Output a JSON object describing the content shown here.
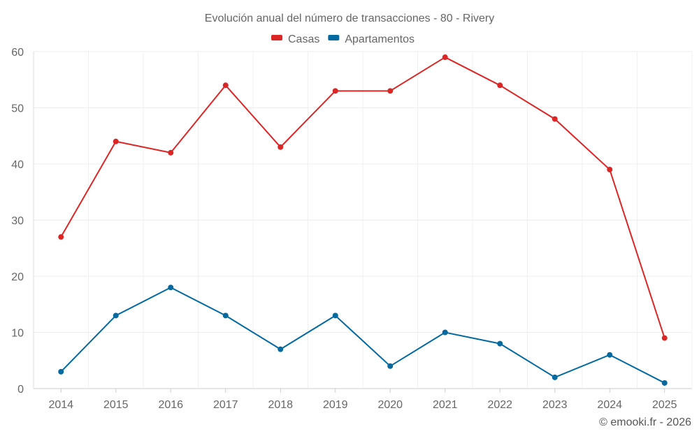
{
  "chart_data": {
    "type": "line",
    "title": "Evolución anual del número de transacciones - 80 - Rivery",
    "categories": [
      "2014",
      "2015",
      "2016",
      "2017",
      "2018",
      "2019",
      "2020",
      "2021",
      "2022",
      "2023",
      "2024",
      "2025"
    ],
    "series": [
      {
        "name": "Casas",
        "color": "#dc2626",
        "values": [
          27,
          44,
          42,
          54,
          43,
          53,
          53,
          59,
          54,
          48,
          39,
          9
        ]
      },
      {
        "name": "Apartamentos",
        "color": "#0369a1",
        "values": [
          3,
          13,
          18,
          13,
          7,
          13,
          4,
          10,
          8,
          2,
          6,
          1
        ]
      }
    ],
    "xlabel": "",
    "ylabel": "",
    "ylim": [
      0,
      60
    ],
    "yticks": [
      0,
      10,
      20,
      30,
      40,
      50,
      60
    ],
    "grid": true,
    "legend_position": "top-center"
  },
  "credit": "© emooki.fr - 2026"
}
